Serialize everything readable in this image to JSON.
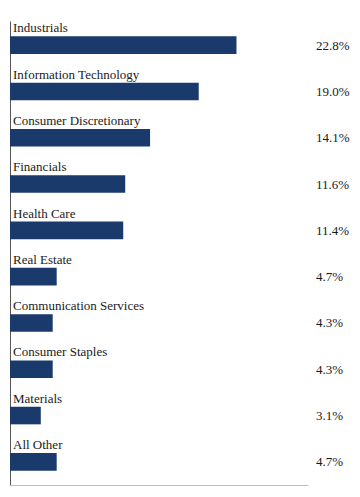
{
  "chart_data": {
    "type": "bar",
    "orientation": "horizontal",
    "categories": [
      "Industrials",
      "Information Technology",
      "Consumer Discretionary",
      "Financials",
      "Health Care",
      "Real Estate",
      "Communication Services",
      "Consumer Staples",
      "Materials",
      "All Other"
    ],
    "values": [
      22.8,
      19.0,
      14.1,
      11.6,
      11.4,
      4.7,
      4.3,
      4.3,
      3.1,
      4.7
    ],
    "value_labels": [
      "22.8%",
      "19.0%",
      "14.1%",
      "11.6%",
      "11.4%",
      "4.7%",
      "4.3%",
      "4.3%",
      "3.1%",
      "4.7%"
    ],
    "color": "#1a3a6b",
    "xlim": [
      0,
      30
    ],
    "grid": false,
    "tick_labels": false,
    "data_labels": true
  }
}
